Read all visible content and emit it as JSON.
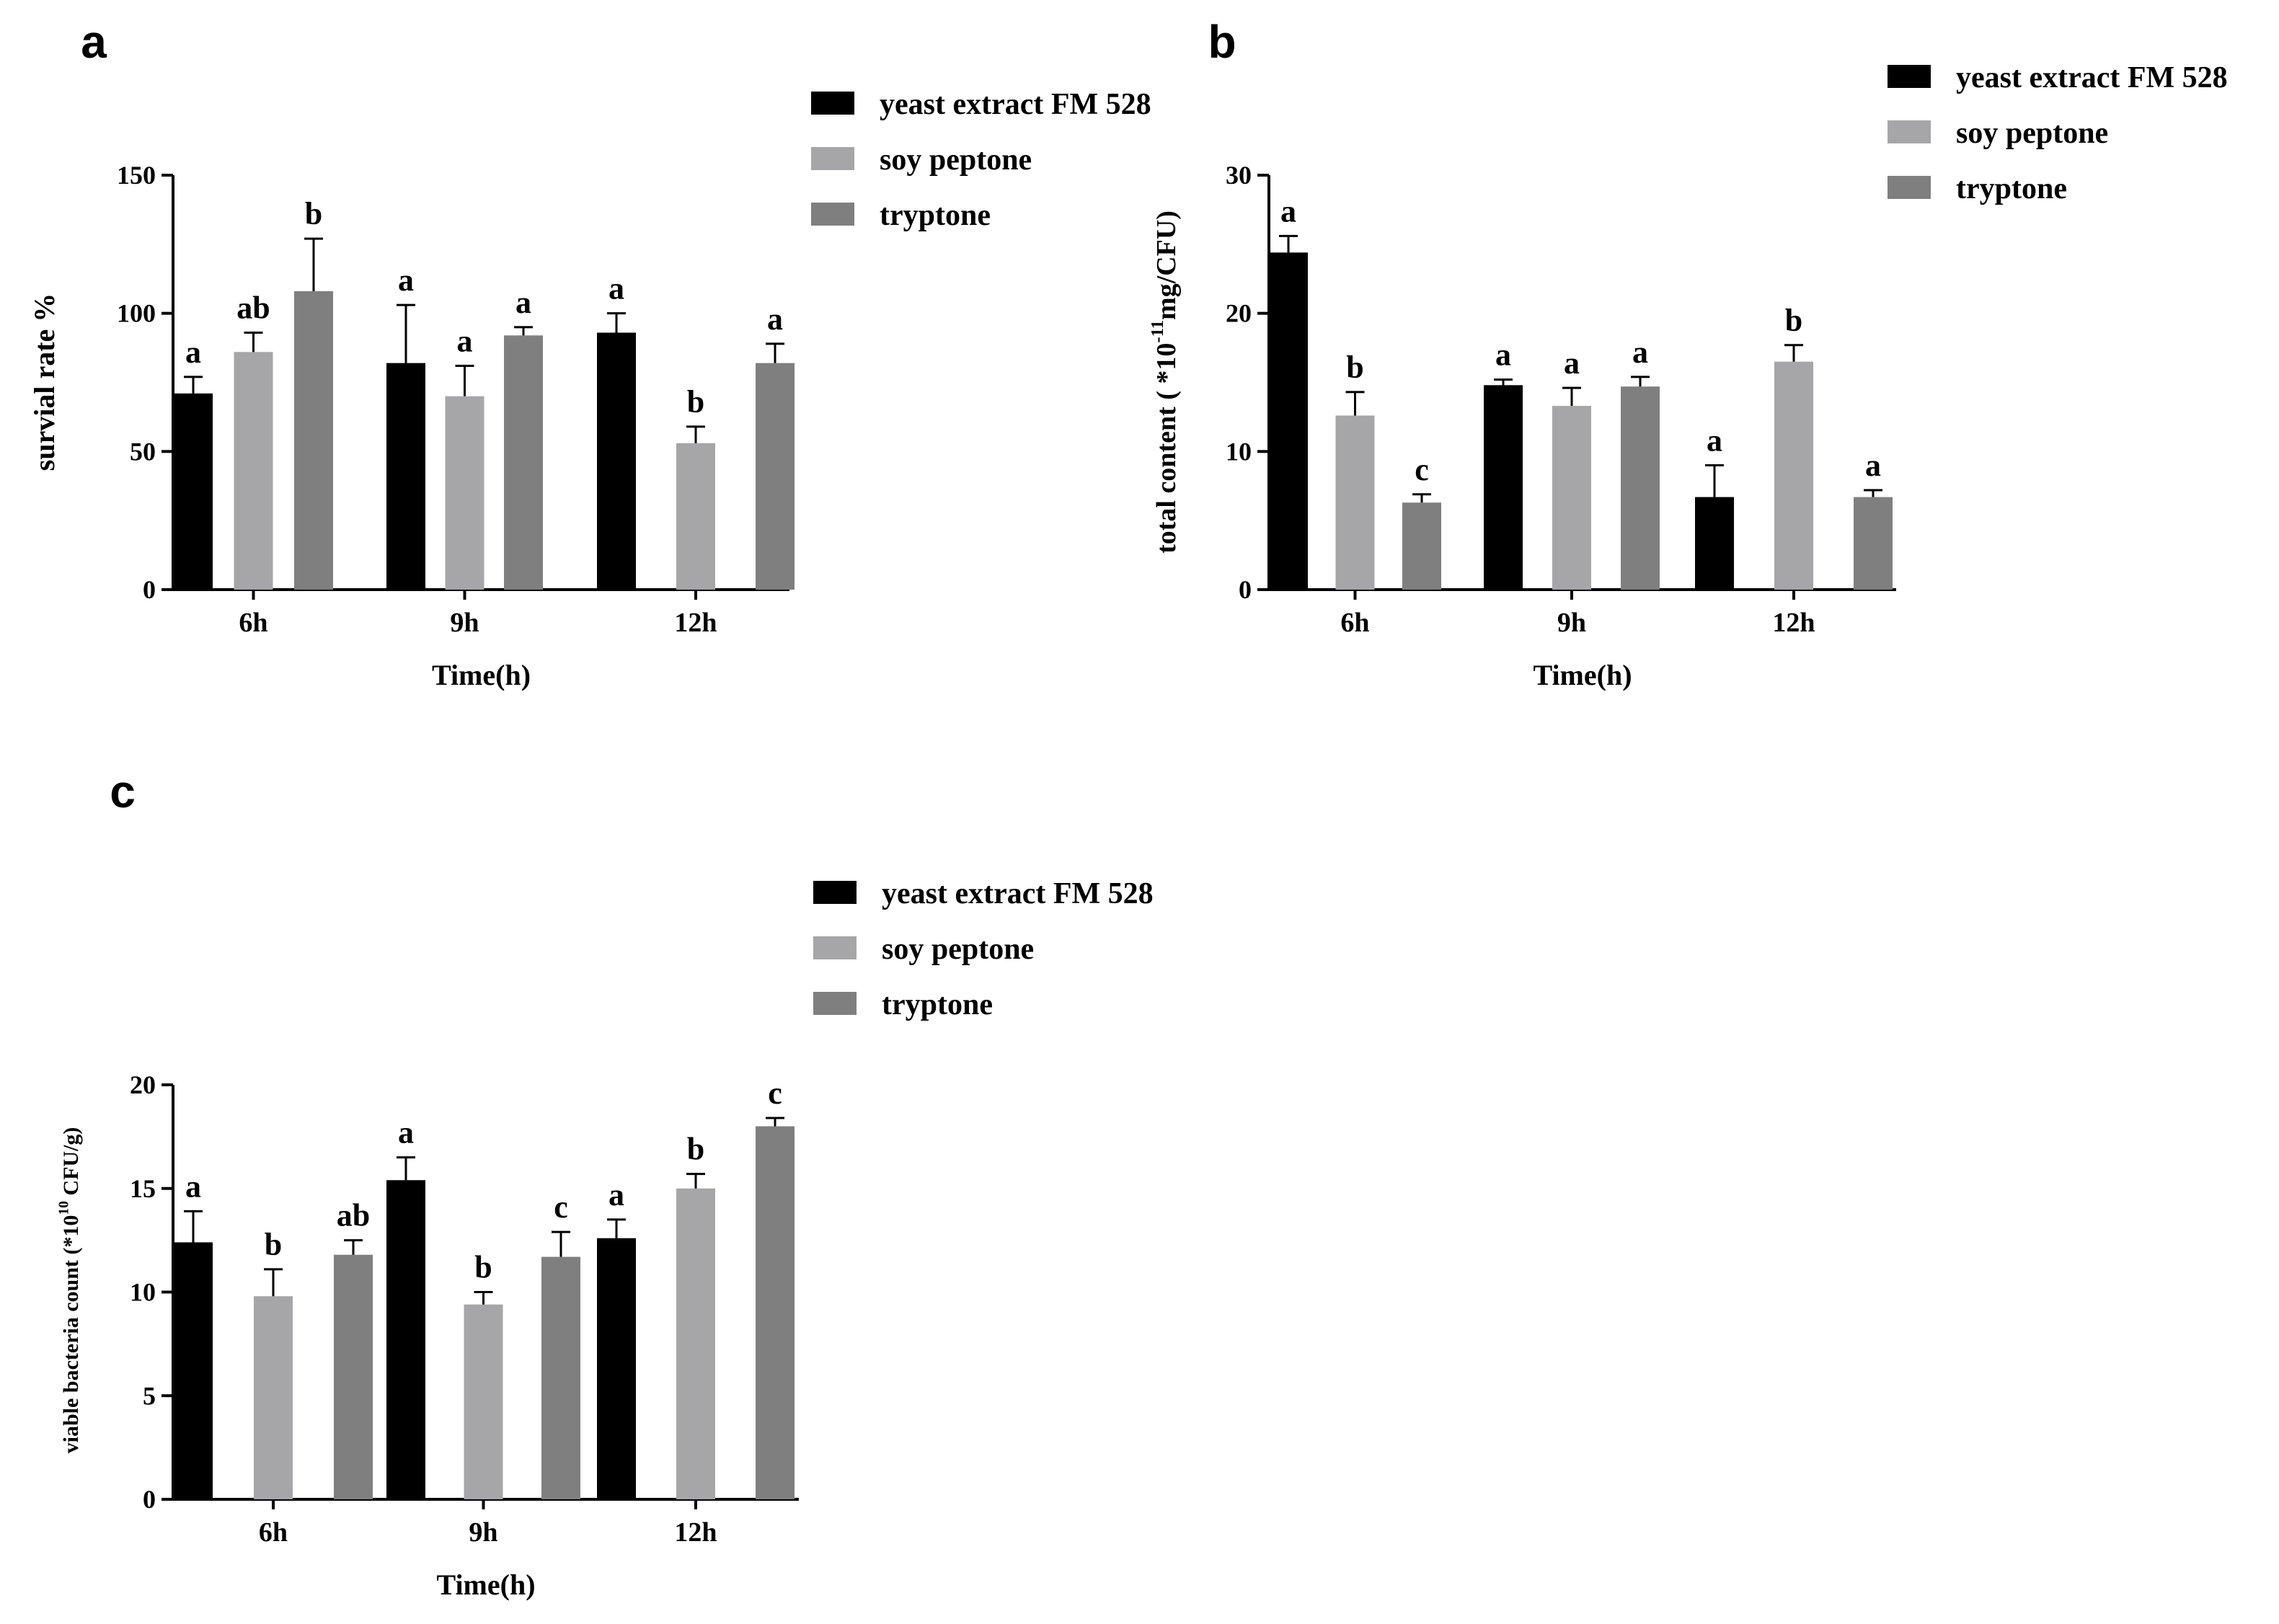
{
  "colors": {
    "yeast": "#000000",
    "soy": "#a6a6a8",
    "tryptone": "#7f7f7f"
  },
  "chart_data": [
    {
      "type": "bar",
      "panel": "a",
      "categories": [
        "6h",
        "9h",
        "12h"
      ],
      "xlabel": "Time(h)",
      "ylabel": "survial rate  %",
      "ylim": [
        0,
        150
      ],
      "yticks": [
        "0",
        "50",
        "100",
        "150"
      ],
      "legend": "top-right",
      "series": [
        {
          "name": "yeast extract FM 528",
          "values": [
            71,
            82,
            93
          ],
          "errors": [
            6,
            21,
            7
          ],
          "letters": [
            "a",
            "a",
            "a"
          ]
        },
        {
          "name": "soy peptone",
          "values": [
            86,
            70,
            53
          ],
          "errors": [
            7,
            11,
            6
          ],
          "letters": [
            "ab",
            "a",
            "b"
          ]
        },
        {
          "name": "tryptone",
          "values": [
            108,
            92,
            82
          ],
          "errors": [
            19,
            3,
            7
          ],
          "letters": [
            "b",
            "a",
            "a"
          ]
        }
      ]
    },
    {
      "type": "bar",
      "panel": "b",
      "categories": [
        "6h",
        "9h",
        "12h"
      ],
      "xlabel": "Time(h)",
      "ylabel_main": "total content ( *10",
      "ylabel_sup": "-11",
      "ylabel_tail": "mg/CFU)",
      "ylim": [
        0,
        30
      ],
      "yticks": [
        "0",
        "10",
        "20",
        "30"
      ],
      "legend": "top-right",
      "series": [
        {
          "name": "yeast extract FM 528",
          "values": [
            24.4,
            14.8,
            6.7
          ],
          "errors": [
            1.2,
            0.4,
            2.3
          ],
          "letters": [
            "a",
            "a",
            "a"
          ]
        },
        {
          "name": "soy peptone",
          "values": [
            12.6,
            13.3,
            16.5
          ],
          "errors": [
            1.7,
            1.3,
            1.2
          ],
          "letters": [
            "b",
            "a",
            "b"
          ]
        },
        {
          "name": "tryptone",
          "values": [
            6.3,
            14.7,
            6.7
          ],
          "errors": [
            0.6,
            0.7,
            0.5
          ],
          "letters": [
            "c",
            "a",
            "a"
          ]
        }
      ]
    },
    {
      "type": "bar",
      "panel": "c",
      "categories": [
        "6h",
        "9h",
        "12h"
      ],
      "xlabel": "Time(h)",
      "ylabel_main": "viable bacteria count  (*10",
      "ylabel_sup": "10",
      "ylabel_tail": " CFU/g)",
      "ylim": [
        0,
        20
      ],
      "yticks": [
        "0",
        "5",
        "10",
        "15",
        "20"
      ],
      "legend": "top-right",
      "series": [
        {
          "name": "yeast extract FM 528",
          "values": [
            12.4,
            15.4,
            12.6
          ],
          "errors": [
            1.5,
            1.1,
            0.9
          ],
          "letters": [
            "a",
            "a",
            "a"
          ]
        },
        {
          "name": "soy peptone",
          "values": [
            9.8,
            9.4,
            15.0
          ],
          "errors": [
            1.3,
            0.6,
            0.7
          ],
          "letters": [
            "b",
            "b",
            "b"
          ]
        },
        {
          "name": "tryptone",
          "values": [
            11.8,
            11.7,
            18.0
          ],
          "errors": [
            0.7,
            1.2,
            0.4
          ],
          "letters": [
            "ab",
            "c",
            "c"
          ]
        }
      ]
    }
  ]
}
